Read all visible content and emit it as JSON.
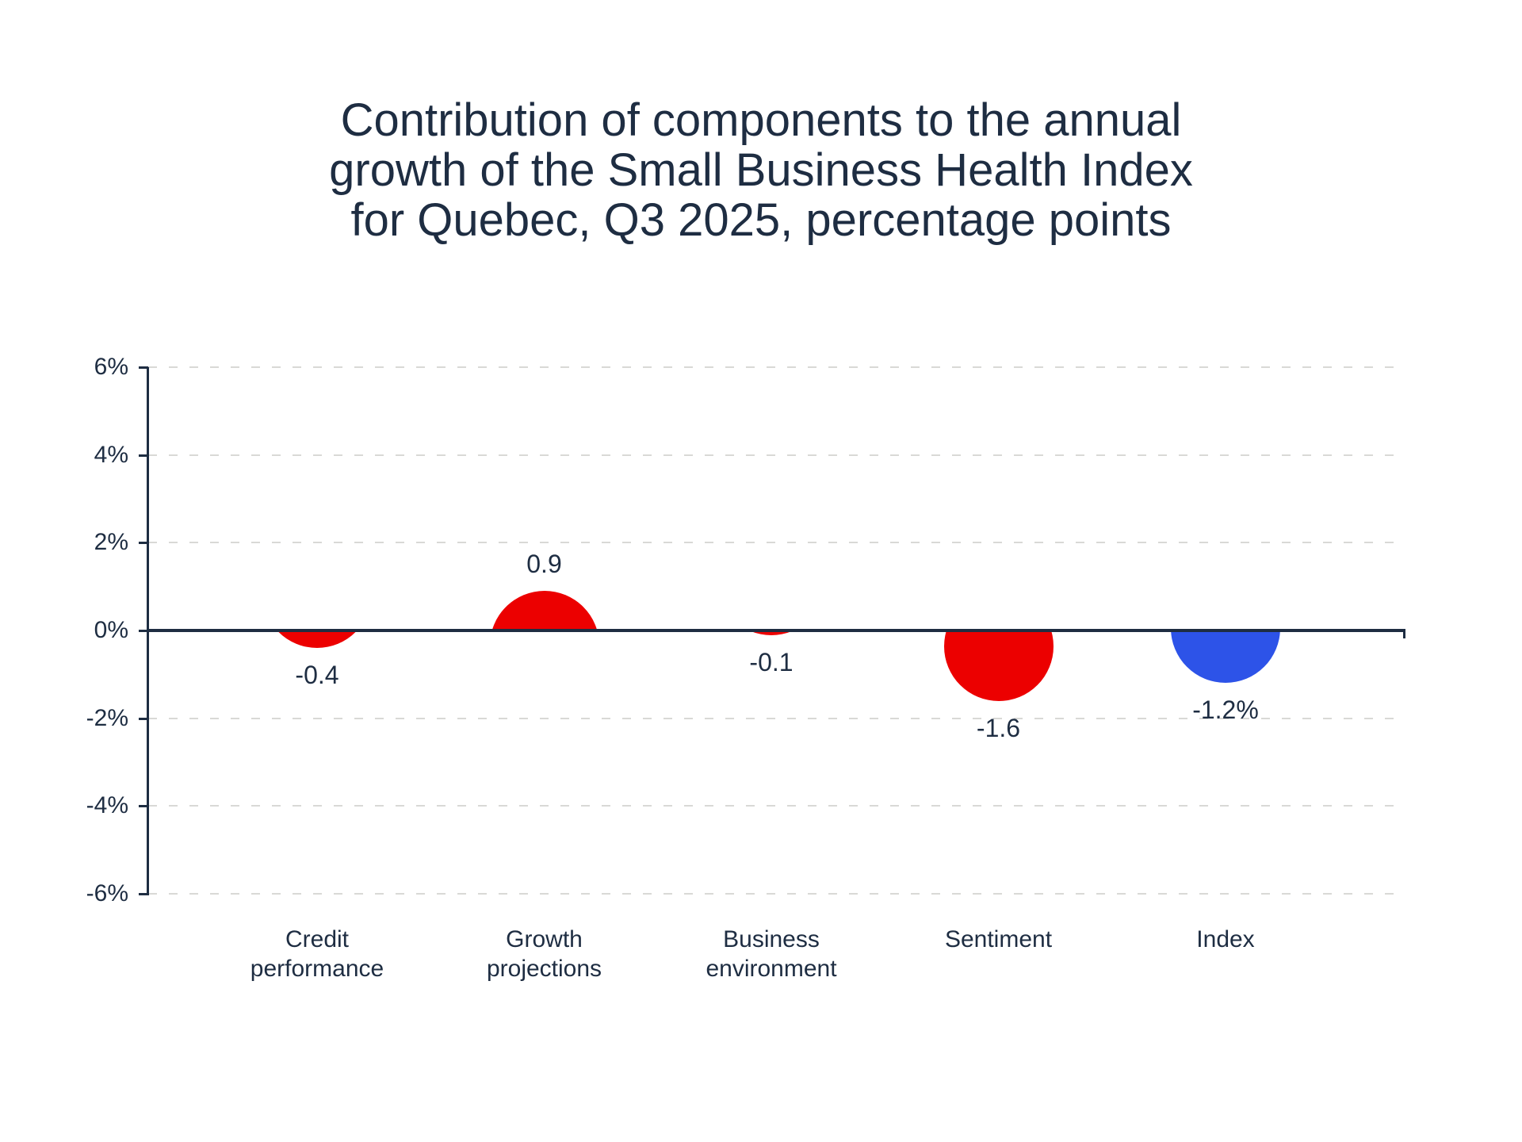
{
  "title": {
    "lines": [
      "Contribution of components to the annual",
      "growth of the Small Business Health Index",
      "for Quebec, Q3 2025, percentage points"
    ]
  },
  "chart_data": {
    "type": "bubble",
    "description": "Contribution bubble chart: circles anchored to the zero line, apex at the value; red = components, blue = overall index",
    "categories": [
      "Credit performance",
      "Growth projections",
      "Business environment",
      "Sentiment",
      "Index"
    ],
    "category_label_lines": [
      [
        "Credit",
        "performance"
      ],
      [
        "Growth",
        "projections"
      ],
      [
        "Business",
        "environment"
      ],
      [
        "Sentiment"
      ],
      [
        "Index"
      ]
    ],
    "values": [
      -0.4,
      0.9,
      -0.1,
      -1.6,
      -1.2
    ],
    "data_labels": [
      "-0.4",
      "0.9",
      "-0.1",
      "-1.6",
      "-1.2%"
    ],
    "point_colors": [
      "#ec0000",
      "#ec0000",
      "#ec0000",
      "#ec0000",
      "#2d53e8"
    ],
    "title": "Contribution of components to the annual growth of the Small Business Health Index for Quebec, Q3 2025, percentage points",
    "xlabel": "",
    "ylabel": "",
    "ylim": [
      -6,
      6
    ],
    "y_ticks": [
      "6%",
      "4%",
      "2%",
      "0%",
      "-2%",
      "-4%",
      "-6%"
    ],
    "y_tick_values": [
      6,
      4,
      2,
      0,
      -2,
      -4,
      -6
    ],
    "grid": "horizontal dashed gridlines at every 2%, solid line at 0%",
    "legend_position": "none",
    "colors": {
      "component_red": "#ec0000",
      "index_blue": "#2d53e8",
      "text_navy": "#1e2d42",
      "gridline_gray": "#d9d9d6",
      "background": "#ffffff"
    }
  }
}
